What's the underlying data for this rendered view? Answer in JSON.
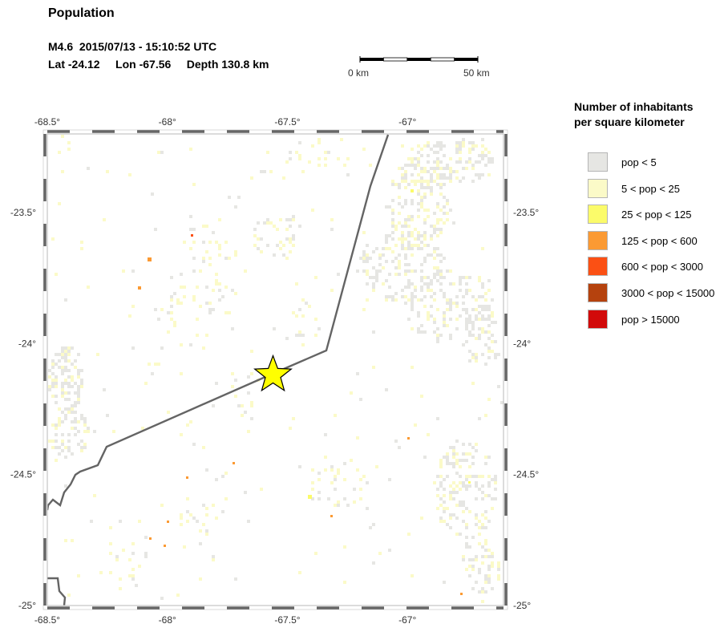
{
  "title": "Population",
  "event": {
    "line1": "M4.6  2015/07/13 - 15:10:52 UTC",
    "line2": "Lat -24.12     Lon -67.56     Depth 130.8 km",
    "lat": -24.12,
    "lon": -67.56
  },
  "scale": {
    "start_label": "0 km",
    "end_label": "50 km"
  },
  "map": {
    "lon_range": [
      -68.5,
      -66.6
    ],
    "lat_range": [
      -25.0,
      -23.2
    ],
    "lon_ticks": [
      {
        "value": -68.5,
        "label": "-68.5°"
      },
      {
        "value": -68.0,
        "label": "-68°"
      },
      {
        "value": -67.5,
        "label": "-67.5°"
      },
      {
        "value": -67.0,
        "label": "-67°"
      }
    ],
    "lat_ticks": [
      {
        "value": -23.5,
        "label": "-23.5°"
      },
      {
        "value": -24.0,
        "label": "-24°"
      },
      {
        "value": -24.5,
        "label": "-24.5°"
      },
      {
        "value": -25.0,
        "label": "-25°"
      }
    ]
  },
  "legend": {
    "title_line1": "Number of inhabitants",
    "title_line2": "per square kilometer",
    "items": [
      {
        "label": "pop < 5",
        "color": "#e6e6e3"
      },
      {
        "label": "5 < pop < 25",
        "color": "#fbfac8"
      },
      {
        "label": "25 < pop < 125",
        "color": "#fbfb6a"
      },
      {
        "label": "125 < pop < 600",
        "color": "#fb9a33"
      },
      {
        "label": "600 < pop < 3000",
        "color": "#fb5014"
      },
      {
        "label": "3000 < pop < 15000",
        "color": "#b5420e"
      },
      {
        "label": "pop > 15000",
        "color": "#d20a0a"
      }
    ]
  },
  "colors": {
    "border": "#646464",
    "star": "#ffff00",
    "frame": "#666666"
  }
}
